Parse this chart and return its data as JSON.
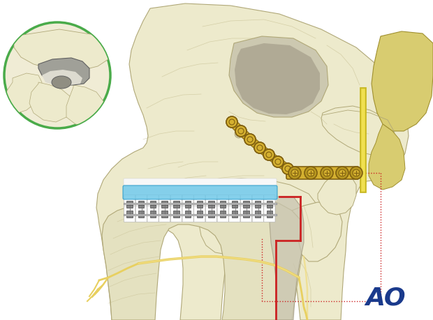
{
  "background_color": "#ffffff",
  "fig_width": 6.2,
  "fig_height": 4.59,
  "dpi": 100,
  "ao_logo_color": "#1a3a8c",
  "ao_logo_fontsize": 26,
  "inset_circle_color": "#4aab4a",
  "skull_bone_color": "#edeacc",
  "skull_bone_color2": "#e4e1c0",
  "skull_bone_edge": "#b0a878",
  "skull_line_color": "#c0b888",
  "mandible_cut_color": "#cc2222",
  "plate_gold": "#b89820",
  "plate_gold_light": "#d4b030",
  "plate_gold_dark": "#806010",
  "brace_metal": "#909090",
  "brace_dark": "#555555",
  "brace_light": "#cccccc",
  "blue_splint_color": "#70c8e8",
  "nerve_color": "#e8d060",
  "nerve_light": "#f0dc80",
  "red_dotted_color": "#cc2222",
  "yellow_rod_color": "#f0e050",
  "yellow_rod_dark": "#c8b820",
  "temporal_yellow": "#d8cc70",
  "temporal_edge": "#a09030",
  "gray_bone_seg": "#c8c4b0",
  "gray_bone_seg_edge": "#a09880",
  "white_area": "#f8f8f8"
}
